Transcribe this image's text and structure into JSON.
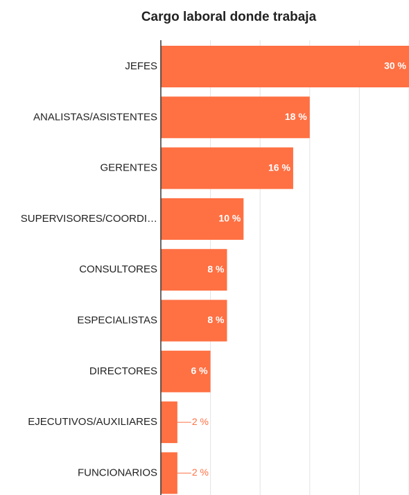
{
  "chart_data": {
    "type": "barh",
    "title": "Cargo laboral donde trabaja",
    "categories": [
      "JEFES",
      "ANALISTAS/ASISTENTES",
      "GERENTES",
      "SUPERVISORES/COORDI…",
      "CONSULTORES",
      "ESPECIALISTAS",
      "DIRECTORES",
      "EJECUTIVOS/AUXILIARES",
      "FUNCIONARIOS"
    ],
    "values": [
      30,
      18,
      16,
      10,
      8,
      8,
      6,
      2,
      2
    ],
    "value_labels": [
      "30 %",
      "18 %",
      "16 %",
      "10 %",
      "8 %",
      "8 %",
      "6 %",
      "2 %",
      "2 %"
    ],
    "color": "#ff7043",
    "xlim": [
      0,
      30
    ],
    "xticks": [
      0,
      6,
      12,
      18,
      24,
      30
    ],
    "grid": true
  }
}
